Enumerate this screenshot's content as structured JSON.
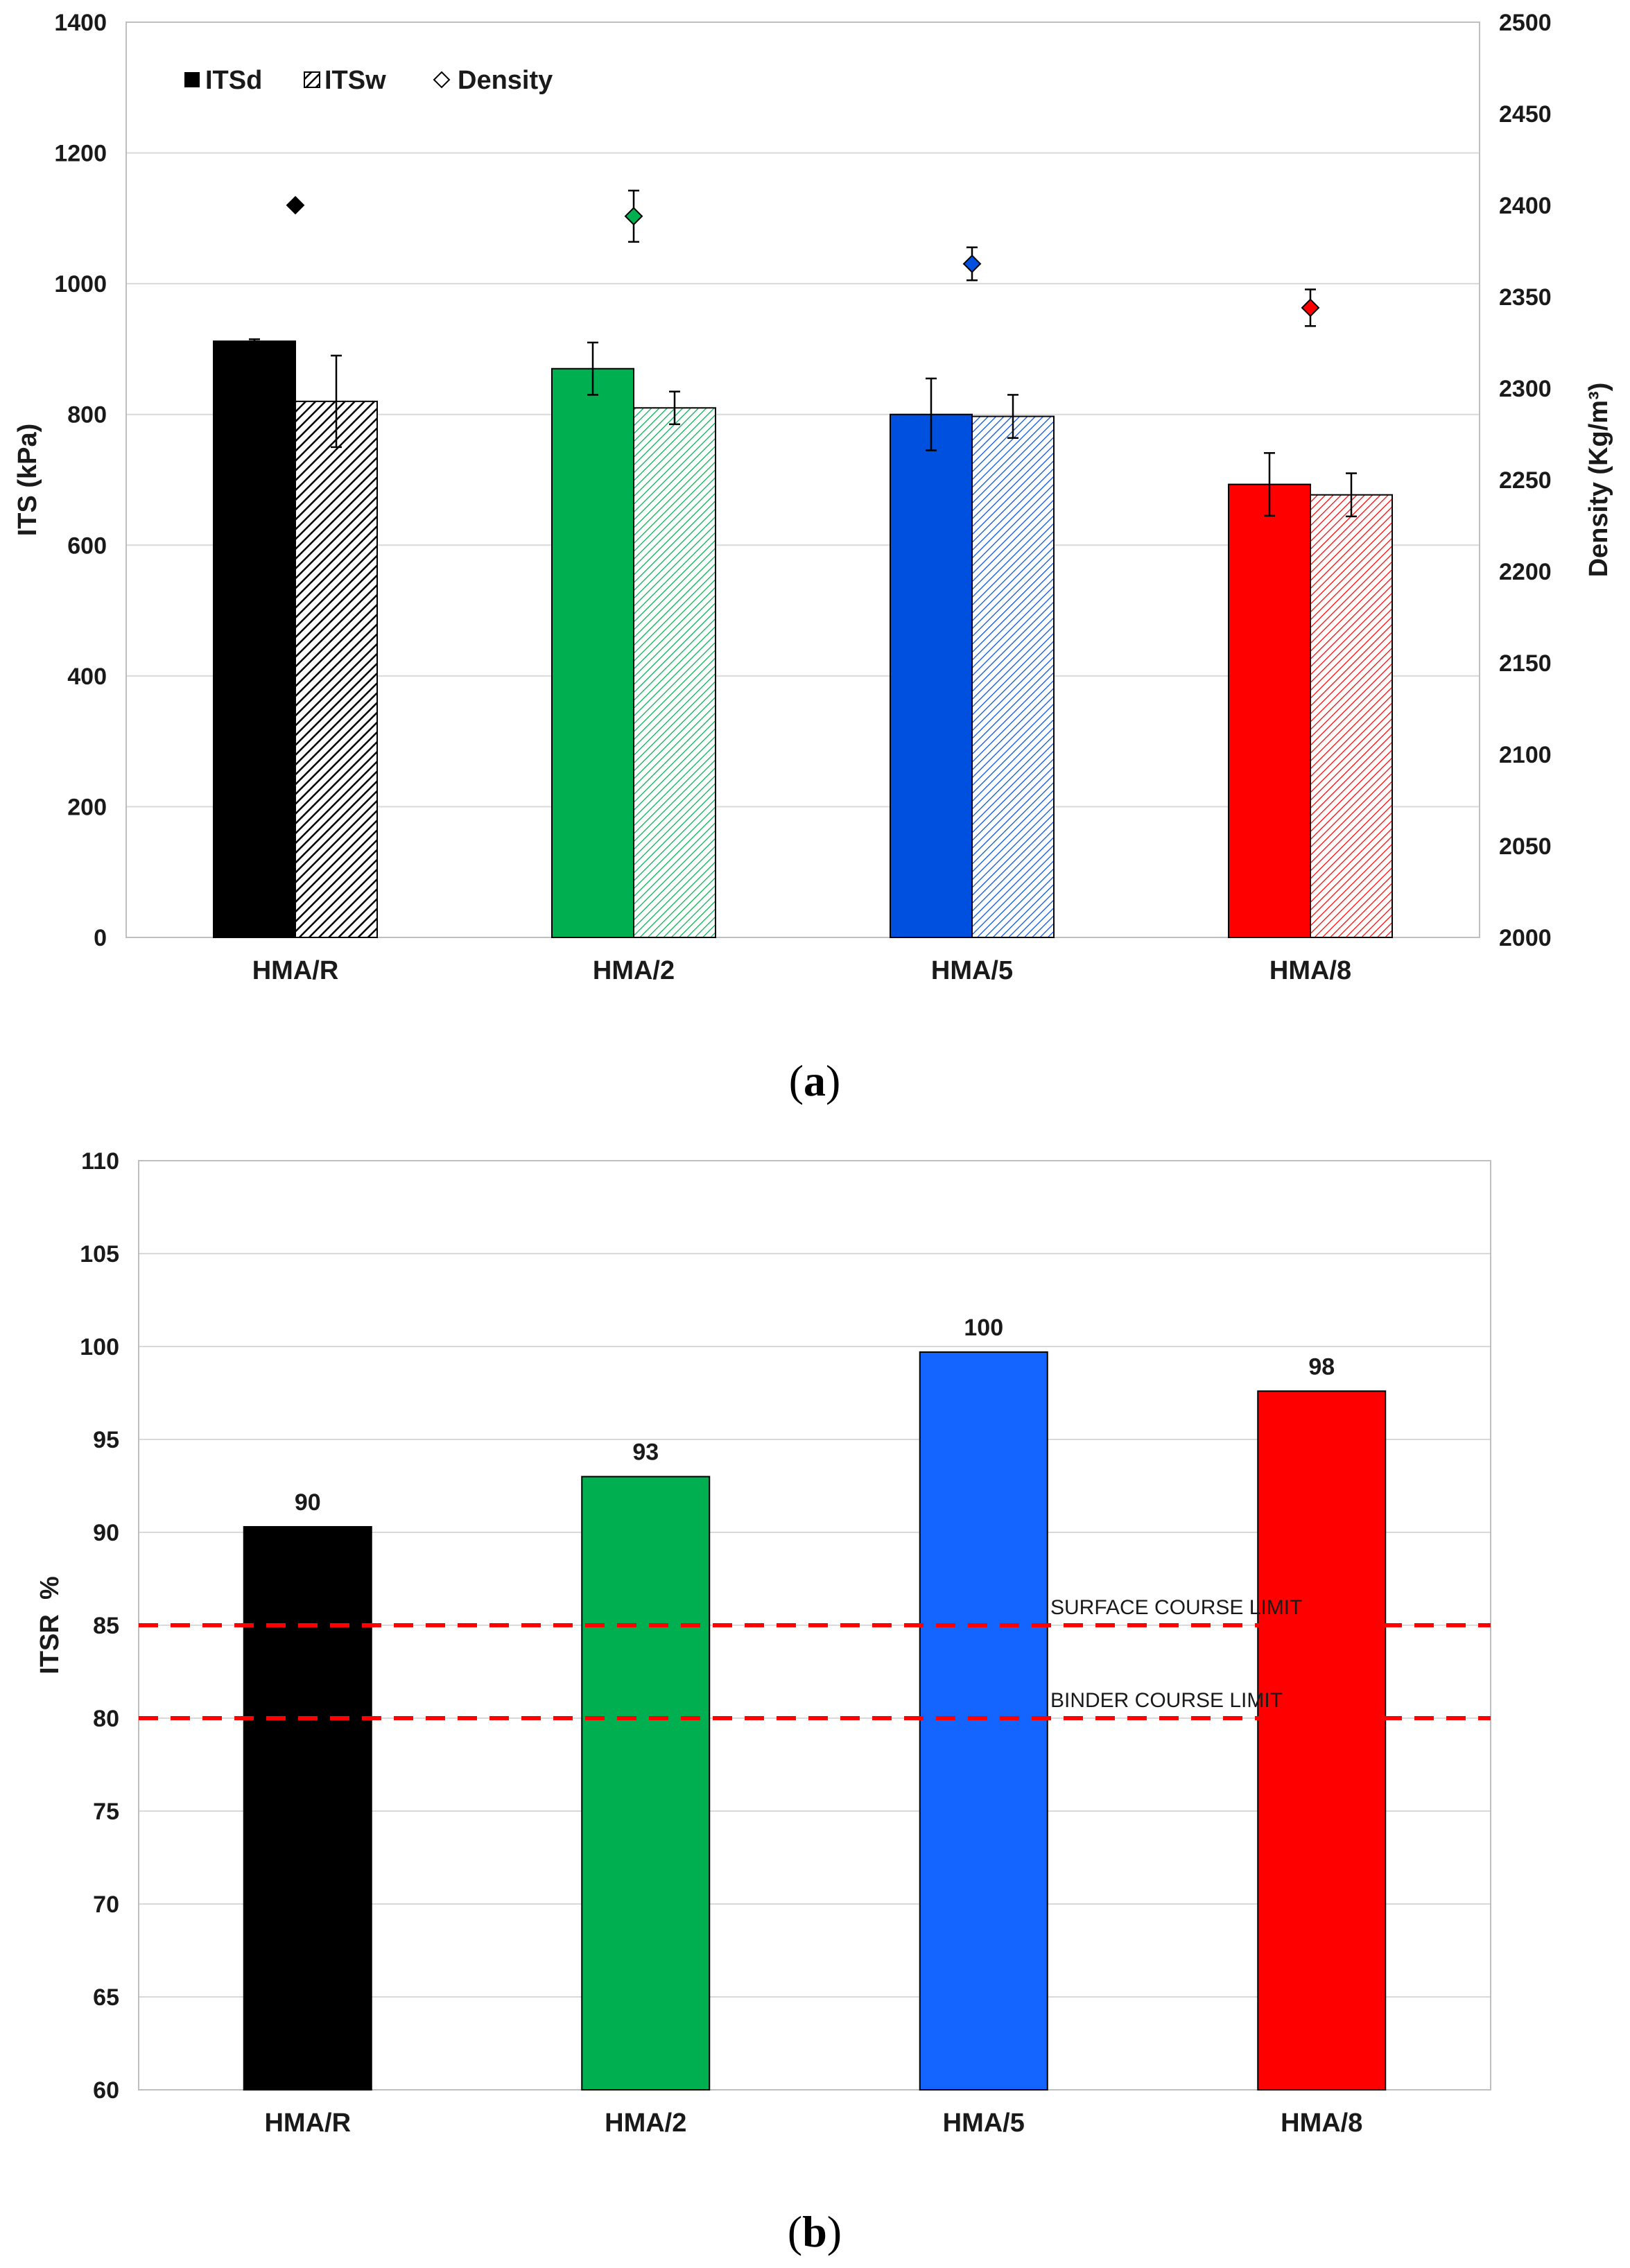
{
  "chart_data": [
    {
      "type": "bar",
      "caption_letter": "a",
      "categories": [
        "HMA/R",
        "HMA/2",
        "HMA/5",
        "HMA/8"
      ],
      "ylabel": "ITS (kPa)",
      "ylim": [
        0,
        1400
      ],
      "yticks": [
        0,
        200,
        400,
        600,
        800,
        1000,
        1200,
        1400
      ],
      "y2label": "Density (Kg/m³)",
      "y2lim": [
        2000,
        2500
      ],
      "y2ticks": [
        2000,
        2050,
        2100,
        2150,
        2200,
        2250,
        2300,
        2350,
        2400,
        2450,
        2500
      ],
      "colors": [
        "#000000",
        "#00b050",
        "#0050e0",
        "#ff0000"
      ],
      "series": [
        {
          "name": "ITSd",
          "values": [
            912,
            870,
            800,
            693
          ],
          "errors": [
            3,
            40,
            55,
            48
          ]
        },
        {
          "name": "ITSw",
          "values": [
            820,
            810,
            797,
            677
          ],
          "errors": [
            70,
            25,
            33,
            33
          ]
        },
        {
          "name": "Density",
          "axis": "secondary",
          "values": [
            2400,
            2394,
            2368,
            2344
          ],
          "errors": [
            0,
            14,
            9,
            10
          ]
        }
      ],
      "legend": [
        "ITSd",
        "ITSw",
        "Density"
      ],
      "legend_position": "top-left",
      "grid": true
    },
    {
      "type": "bar",
      "caption_letter": "b",
      "categories": [
        "HMA/R",
        "HMA/2",
        "HMA/5",
        "HMA/8"
      ],
      "values": [
        90.3,
        93.0,
        99.7,
        97.6
      ],
      "data_labels": [
        "90",
        "93",
        "100",
        "98"
      ],
      "colors": [
        "#000000",
        "#00b050",
        "#1464ff",
        "#ff0000"
      ],
      "ylabel": "ITSR  %",
      "ylim": [
        60,
        110
      ],
      "yticks": [
        60,
        65,
        70,
        75,
        80,
        85,
        90,
        95,
        100,
        105,
        110
      ],
      "reference_lines": [
        {
          "label": "SURFACE COURSE LIMIT",
          "value": 85
        },
        {
          "label": "BINDER COURSE LIMIT",
          "value": 80
        }
      ],
      "grid": true
    }
  ]
}
